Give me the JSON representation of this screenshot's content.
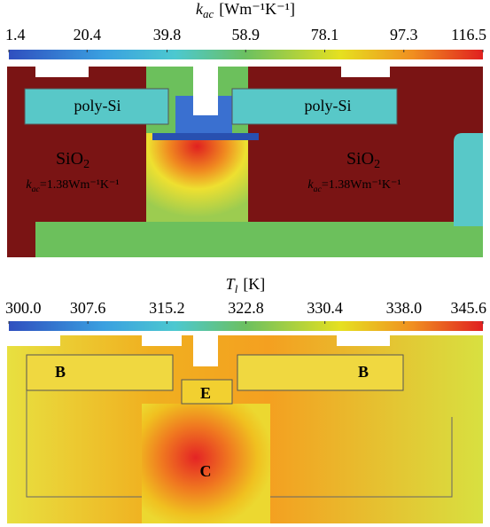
{
  "panels": [
    {
      "colorbar": {
        "title_symbol": "k",
        "title_sub": "ac",
        "title_unit": "[Wm⁻¹K⁻¹]",
        "lim": [
          1.4,
          116.5
        ],
        "ticks": [
          1.4,
          20.4,
          39.8,
          58.9,
          78.1,
          97.3,
          116.5
        ]
      },
      "labels": [
        {
          "text": "poly-Si"
        },
        {
          "text": "poly-Si"
        },
        {
          "text": "SiO",
          "sub": "2"
        },
        {
          "text": "SiO",
          "sub": "2"
        },
        {
          "text": "k",
          "sub": "ac",
          "rest": "=1.38Wm⁻¹K⁻¹"
        },
        {
          "text": "k",
          "sub": "ac",
          "rest": "=1.38Wm⁻¹K⁻¹"
        }
      ]
    },
    {
      "colorbar": {
        "title_symbol": "T",
        "title_sub": "l",
        "title_unit": "[K]",
        "lim": [
          300,
          345.6
        ],
        "ticks": [
          {
            "value": 300,
            "label": "300.0"
          },
          307.6,
          315.2,
          322.8,
          330.4,
          {
            "value": 338,
            "label": "338.0"
          },
          345.6
        ]
      },
      "labels": [
        {
          "text": "B"
        },
        {
          "text": "B"
        },
        {
          "text": "E"
        },
        {
          "text": "C"
        }
      ]
    }
  ]
}
